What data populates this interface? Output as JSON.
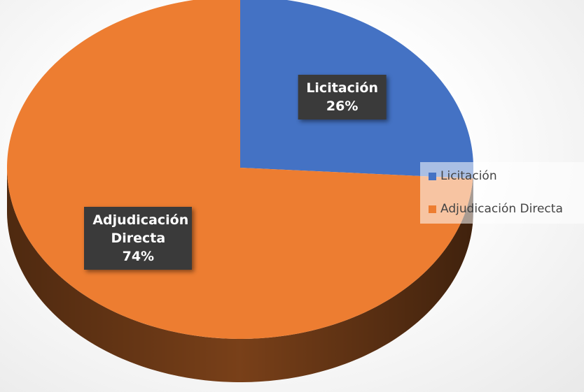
{
  "chart_data": {
    "type": "pie",
    "categories": [
      "Licitación",
      "Adjudicación Directa"
    ],
    "values": [
      26,
      74
    ],
    "value_labels": [
      "26%",
      "74%"
    ],
    "colors": [
      "#4472c4",
      "#ed7d31"
    ],
    "legend": "right"
  }
}
